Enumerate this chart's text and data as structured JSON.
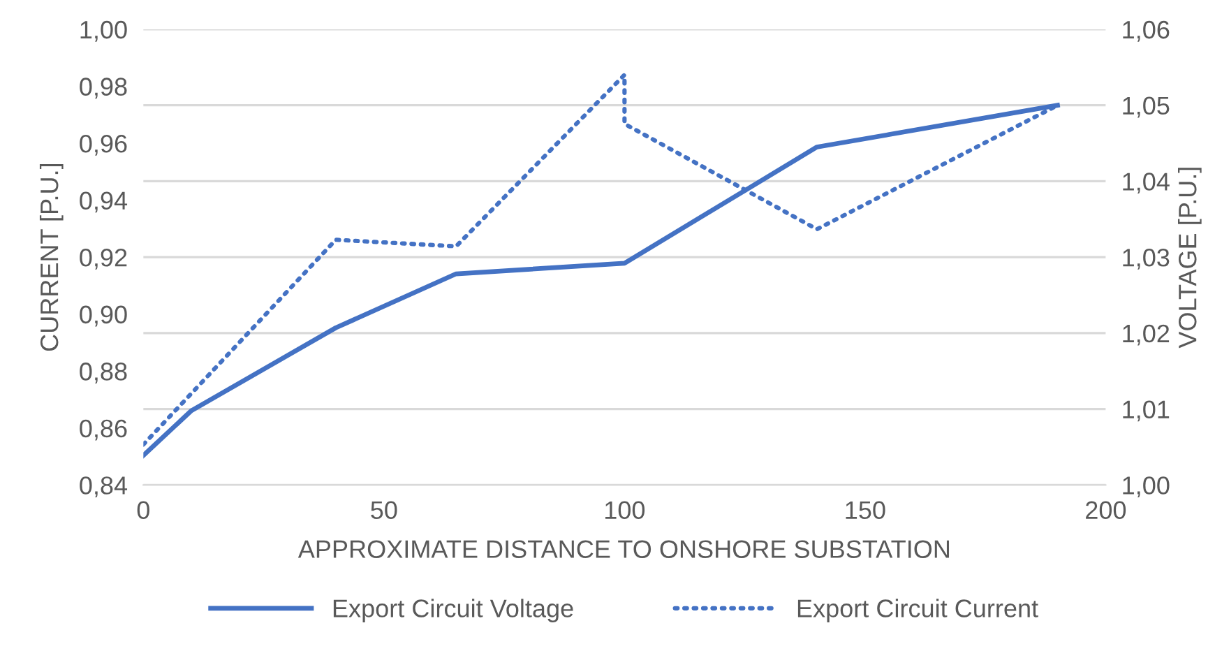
{
  "chart_data": {
    "type": "line",
    "xlabel": "APPROXIMATE DISTANCE TO ONSHORE SUBSTATION",
    "ylabel": "CURRENT [P.U.]",
    "y2label": "VOLTAGE [P.U.]",
    "series": [
      {
        "name": "Export Circuit Voltage",
        "color": "#4472c4",
        "axis": "y2",
        "line_style": "solid",
        "x": [
          0,
          10,
          40,
          65,
          100,
          140,
          190
        ],
        "values": [
          1.0039,
          1.0098,
          1.0207,
          1.0278,
          1.0292,
          1.0445,
          1.05
        ]
      },
      {
        "name": "Export Circuit Current",
        "color": "#4472c4",
        "axis": "y",
        "line_style": "dotted",
        "x": [
          0,
          40,
          65,
          100,
          100,
          140,
          190
        ],
        "values": [
          0.8542,
          0.9261,
          0.9238,
          0.984,
          0.9668,
          0.9298,
          0.9733
        ]
      }
    ],
    "xlim": [
      0,
      200
    ],
    "xticks": [
      0,
      50,
      100,
      150,
      200
    ],
    "ylim": [
      0.84,
      1.0
    ],
    "yticks": [
      {
        "value": 0.84,
        "label": "0,84"
      },
      {
        "value": 0.86,
        "label": "0,86"
      },
      {
        "value": 0.88,
        "label": "0,88"
      },
      {
        "value": 0.9,
        "label": "0,90"
      },
      {
        "value": 0.92,
        "label": "0,92"
      },
      {
        "value": 0.94,
        "label": "0,94"
      },
      {
        "value": 0.96,
        "label": "0,96"
      },
      {
        "value": 0.98,
        "label": "0,98"
      },
      {
        "value": 1.0,
        "label": "1,00"
      }
    ],
    "y2lim": [
      1.0,
      1.06
    ],
    "y2ticks": [
      {
        "value": 1.0,
        "label": "1,00"
      },
      {
        "value": 1.01,
        "label": "1,01"
      },
      {
        "value": 1.02,
        "label": "1,02"
      },
      {
        "value": 1.03,
        "label": "1,03"
      },
      {
        "value": 1.04,
        "label": "1,04"
      },
      {
        "value": 1.05,
        "label": "1,05"
      },
      {
        "value": 1.06,
        "label": "1,06"
      }
    ],
    "grid": "y",
    "legend": "bottom",
    "marker": "none"
  }
}
